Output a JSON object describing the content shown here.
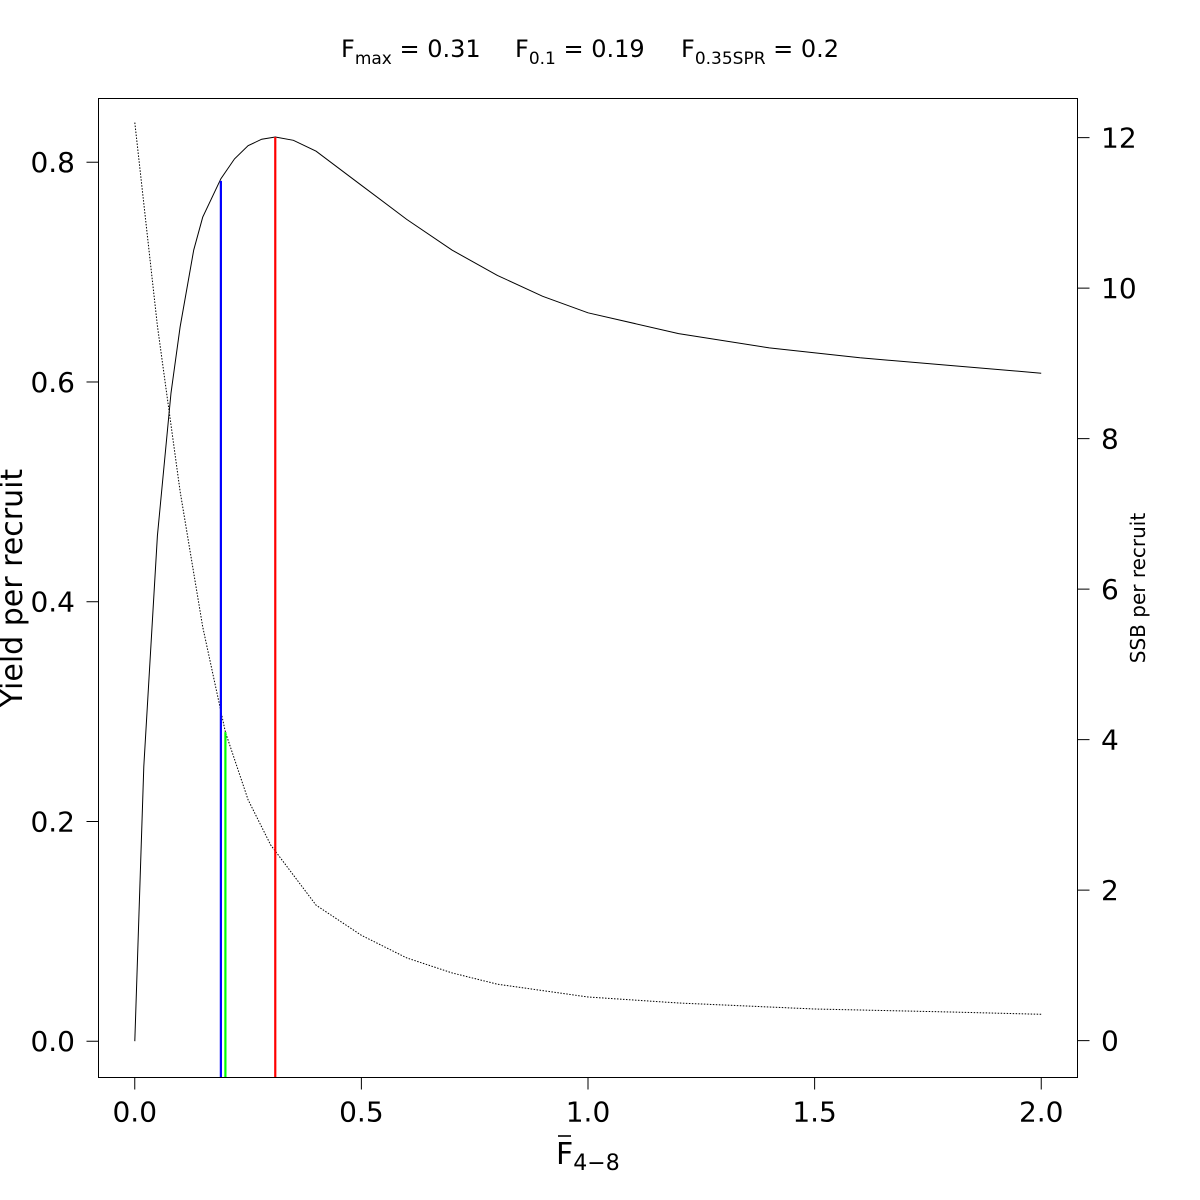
{
  "chart_data": {
    "type": "line",
    "title": {
      "fmax": {
        "base": "F",
        "sub": "max",
        "value": " = 0.31"
      },
      "f01": {
        "base": "F",
        "sub": "0.1",
        "value": " = 0.19"
      },
      "fspr": {
        "base": "F",
        "sub": "0.35SPR",
        "value": " = 0.2"
      }
    },
    "xlabel": {
      "base": "F",
      "sub": "4−8"
    },
    "ylabel": "Yield per recruit",
    "y2label": "SSB per recruit",
    "xlim": [
      -0.08,
      2.08
    ],
    "ylim": [
      -0.033,
      0.858
    ],
    "y2lim": [
      -0.49,
      12.52
    ],
    "xticks": [
      "0.0",
      "0.5",
      "1.0",
      "1.5",
      "2.0"
    ],
    "xtick_values": [
      0,
      0.5,
      1,
      1.5,
      2
    ],
    "yticks": [
      "0.0",
      "0.2",
      "0.4",
      "0.6",
      "0.8"
    ],
    "ytick_values": [
      0,
      0.2,
      0.4,
      0.6,
      0.8
    ],
    "y2ticks": [
      "0",
      "2",
      "4",
      "6",
      "8",
      "10",
      "12"
    ],
    "y2tick_values": [
      0,
      2,
      4,
      6,
      8,
      10,
      12
    ],
    "series": [
      {
        "axis": "left",
        "style": "solid",
        "color": "#000000",
        "x": [
          0,
          0.02,
          0.05,
          0.08,
          0.1,
          0.13,
          0.15,
          0.19,
          0.22,
          0.25,
          0.28,
          0.31,
          0.35,
          0.4,
          0.5,
          0.6,
          0.7,
          0.8,
          0.9,
          1.0,
          1.2,
          1.4,
          1.6,
          1.8,
          2.0
        ],
        "values": [
          0.0,
          0.25,
          0.46,
          0.59,
          0.65,
          0.72,
          0.75,
          0.785,
          0.803,
          0.815,
          0.821,
          0.823,
          0.82,
          0.81,
          0.779,
          0.748,
          0.72,
          0.697,
          0.678,
          0.663,
          0.644,
          0.631,
          0.622,
          0.615,
          0.608
        ]
      },
      {
        "axis": "right",
        "style": "dotted",
        "color": "#000000",
        "x": [
          0,
          0.05,
          0.1,
          0.15,
          0.2,
          0.25,
          0.3,
          0.35,
          0.4,
          0.5,
          0.6,
          0.7,
          0.8,
          1.0,
          1.2,
          1.5,
          1.8,
          2.0
        ],
        "values": [
          12.2,
          9.5,
          7.3,
          5.5,
          4.1,
          3.2,
          2.6,
          2.2,
          1.8,
          1.4,
          1.1,
          0.9,
          0.75,
          0.58,
          0.5,
          0.42,
          0.38,
          0.35
        ]
      }
    ],
    "reference_lines": [
      {
        "name": "F0.1",
        "x": 0.19,
        "y_top": 0.783,
        "axis": "left",
        "color": "#0000ff"
      },
      {
        "name": "F0.35SPR",
        "x": 0.2,
        "y_top": 4.1,
        "axis": "right",
        "color": "#00ff00"
      },
      {
        "name": "Fmax",
        "x": 0.31,
        "y_top": 0.823,
        "axis": "left",
        "color": "#ff0000"
      }
    ]
  }
}
